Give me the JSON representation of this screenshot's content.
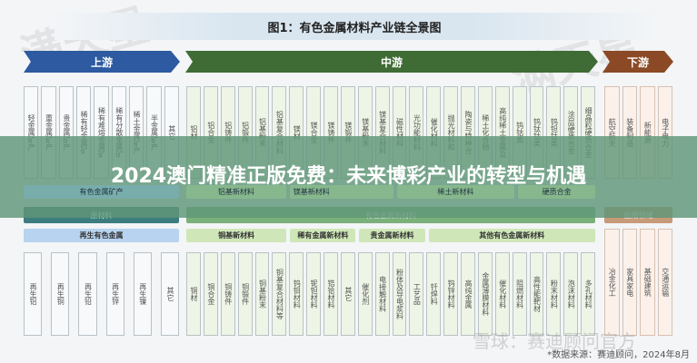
{
  "title": "图1：有色金属材料产业链全景图",
  "stages": {
    "up": "上游",
    "mid": "中游",
    "down": "下游"
  },
  "colors": {
    "up": "#2d5aa0",
    "mid": "#3f6b35",
    "down": "#8b4a25"
  },
  "top_columns": {
    "up": [
      "轻金属矿产",
      "重金属矿产",
      "贵金属矿产",
      "稀有轻金属矿",
      "稀有难熔金属矿",
      "稀有分散金属矿",
      "稀土金属矿产",
      "半金属矿产",
      "其它"
    ],
    "mid": [
      "铝材",
      "铝合金",
      "铝铸件",
      "铝锻件",
      "铝基粉末",
      "铝基复合材料",
      "镁材",
      "镁合金",
      "镁铸件",
      "镁锻件",
      "镁基粉末",
      "镁基复合材料",
      "磁性材料",
      "光功能材料",
      "催化材料",
      "抛光材料和",
      "陶瓷与特种合",
      "稀土化合物",
      "高纯稀土金属及",
      "钨钴类",
      "钨钛钴类",
      "钨钽钴类",
      "涂层硬质合金",
      "细晶粒硬质合金"
    ],
    "down": [
      "航空航天",
      "装备制造",
      "新能源",
      "电子电力"
    ]
  },
  "row1": {
    "up": "有色金属矿产",
    "mid": [
      "铝基新材料",
      "镁基新材料",
      "稀土新材料",
      "硬质合金"
    ]
  },
  "row2": {
    "up": "原材料",
    "mid": "有色金属新材料",
    "down": "应用领域"
  },
  "row3": {
    "up": "再生有色金属",
    "mid": [
      "铜基新材料",
      "稀有金属新材料",
      "贵金属新材料",
      "其他有色金属新材料"
    ]
  },
  "bottom_columns": {
    "up": [
      "再生铝",
      "再生铜",
      "再生铅",
      "再生锌",
      "再生镍",
      "其它"
    ],
    "mid": [
      "铜材",
      "铜合金",
      "铜铸件",
      "铜锻件",
      "铜基粉末",
      "铜基复合材料等",
      "钨钼材料",
      "铌钽材料",
      "锆铪材料",
      "其它",
      "催化剂",
      "电接触材料",
      "粉体及导电浆料",
      "工艺品",
      "钎焊料",
      "钨锌材料",
      "高纯金属",
      "金属薄膜材料",
      "催化材料",
      "阻燃材料",
      "高性能靶材",
      "粉末材料",
      "泡沫材料",
      "多孔材料"
    ],
    "down": [
      "冶金化工",
      "家具家电",
      "基础建筑",
      "交通运输"
    ]
  },
  "banner": "2024澳门精准正版免费：未来博彩产业的转型与机遇",
  "watermark_logo": "满天星",
  "watermark_xueqiu": "雪球：赛迪顾问官方",
  "source": "*数据来源：赛迪顾问，2024年8月"
}
